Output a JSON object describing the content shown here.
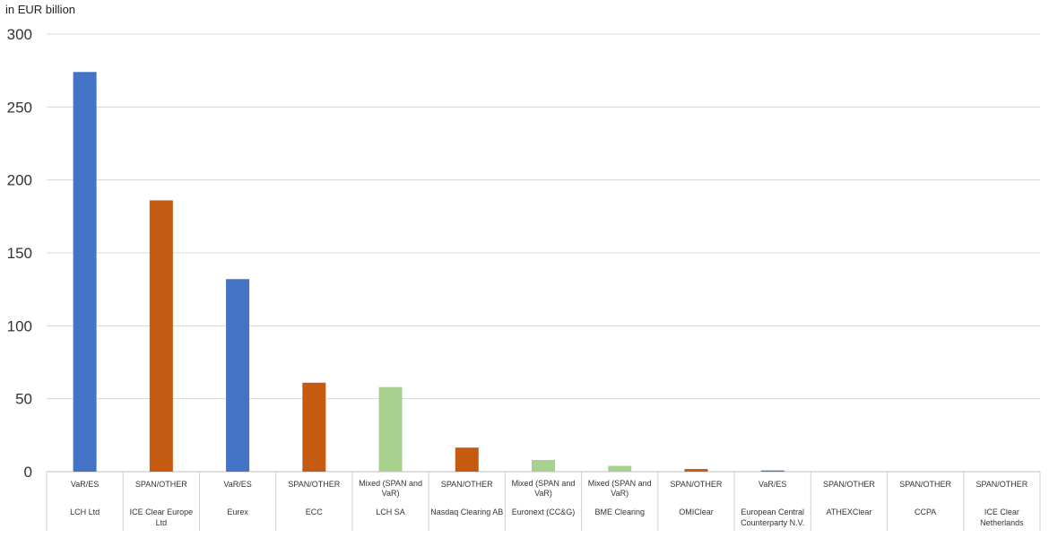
{
  "chart_data": {
    "type": "bar",
    "unit_label": "in EUR billion",
    "ylim": [
      0,
      300
    ],
    "yticks": [
      0,
      50,
      100,
      150,
      200,
      250,
      300
    ],
    "grid": true,
    "categories": [
      {
        "method": "VaR/ES",
        "method_lines": [
          "VaR/ES"
        ],
        "name": "LCH Ltd",
        "name_lines": [
          "LCH Ltd"
        ],
        "value": 274,
        "color_key": "var"
      },
      {
        "method": "SPAN/OTHER",
        "method_lines": [
          "SPAN/OTHER"
        ],
        "name": "ICE Clear Europe Ltd",
        "name_lines": [
          "ICE Clear Europe",
          "Ltd"
        ],
        "value": 186,
        "color_key": "span"
      },
      {
        "method": "VaR/ES",
        "method_lines": [
          "VaR/ES"
        ],
        "name": "Eurex",
        "name_lines": [
          "Eurex"
        ],
        "value": 132,
        "color_key": "var"
      },
      {
        "method": "SPAN/OTHER",
        "method_lines": [
          "SPAN/OTHER"
        ],
        "name": "ECC",
        "name_lines": [
          "ECC"
        ],
        "value": 61,
        "color_key": "span"
      },
      {
        "method": "Mixed (SPAN and VaR)",
        "method_lines": [
          "Mixed (SPAN and",
          "VaR)"
        ],
        "name": "LCH SA",
        "name_lines": [
          "LCH SA"
        ],
        "value": 58,
        "color_key": "mixed"
      },
      {
        "method": "SPAN/OTHER",
        "method_lines": [
          "SPAN/OTHER"
        ],
        "name": "Nasdaq Clearing AB",
        "name_lines": [
          "Nasdaq Clearing AB"
        ],
        "value": 16.5,
        "color_key": "span"
      },
      {
        "method": "Mixed (SPAN and VaR)",
        "method_lines": [
          "Mixed (SPAN and",
          "VaR)"
        ],
        "name": "Euronext (CC&G)",
        "name_lines": [
          "Euronext (CC&G)"
        ],
        "value": 8,
        "color_key": "mixed"
      },
      {
        "method": "Mixed (SPAN and VaR)",
        "method_lines": [
          "Mixed (SPAN and",
          "VaR)"
        ],
        "name": "BME Clearing",
        "name_lines": [
          "BME Clearing"
        ],
        "value": 4,
        "color_key": "mixed"
      },
      {
        "method": "SPAN/OTHER",
        "method_lines": [
          "SPAN/OTHER"
        ],
        "name": "OMIClear",
        "name_lines": [
          "OMIClear"
        ],
        "value": 1.8,
        "color_key": "span"
      },
      {
        "method": "VaR/ES",
        "method_lines": [
          "VaR/ES"
        ],
        "name": "European Central Counterparty N.V.",
        "name_lines": [
          "European Central",
          "Counterparty N.V."
        ],
        "value": 0.8,
        "color_key": "var"
      },
      {
        "method": "SPAN/OTHER",
        "method_lines": [
          "SPAN/OTHER"
        ],
        "name": "ATHEXClear",
        "name_lines": [
          "ATHEXClear"
        ],
        "value": 0,
        "color_key": "span"
      },
      {
        "method": "SPAN/OTHER",
        "method_lines": [
          "SPAN/OTHER"
        ],
        "name": "CCPA",
        "name_lines": [
          "CCPA"
        ],
        "value": 0,
        "color_key": "span"
      },
      {
        "method": "SPAN/OTHER",
        "method_lines": [
          "SPAN/OTHER"
        ],
        "name": "ICE Clear Netherlands",
        "name_lines": [
          "ICE Clear",
          "Netherlands"
        ],
        "value": 0,
        "color_key": "span"
      }
    ],
    "colors": {
      "var": "#4472c4",
      "span": "#c55a11",
      "mixed": "#a9d18e",
      "grid": "#d9d9d9",
      "axis_text": "#333333",
      "cat_text": "#333333"
    }
  }
}
